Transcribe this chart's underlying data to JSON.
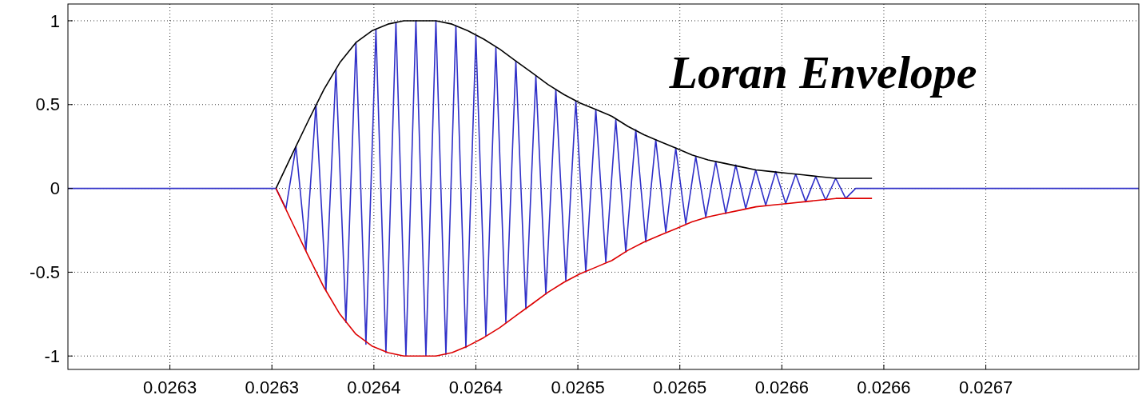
{
  "chart_data": {
    "type": "line",
    "title": "Loran Envelope",
    "xlim": [
      0.02625,
      0.026775
    ],
    "ylim": [
      -1.08,
      1.1
    ],
    "xticks": [
      {
        "value": 0.0263,
        "label": "0.0263"
      },
      {
        "value": 0.02635,
        "label": "0.0263"
      },
      {
        "value": 0.0264,
        "label": "0.0264"
      },
      {
        "value": 0.02645,
        "label": "0.0264"
      },
      {
        "value": 0.0265,
        "label": "0.0265"
      },
      {
        "value": 0.02655,
        "label": "0.0265"
      },
      {
        "value": 0.0266,
        "label": "0.0266"
      },
      {
        "value": 0.02665,
        "label": "0.0266"
      },
      {
        "value": 0.0267,
        "label": "0.0267"
      }
    ],
    "yticks": [
      -1,
      -0.5,
      0,
      0.5,
      1
    ],
    "grid": true,
    "marker": "none",
    "line_style": "solid",
    "series": [
      {
        "color": "#3030c8",
        "x": [
          0.02625,
          0.026352,
          0.0263569,
          0.0263618,
          0.0263667,
          0.0263716,
          0.0263765,
          0.0263814,
          0.0263863,
          0.0263912,
          0.0263961,
          0.026401,
          0.0264059,
          0.0264108,
          0.0264157,
          0.0264206,
          0.0264255,
          0.0264304,
          0.0264353,
          0.0264402,
          0.0264451,
          0.02645,
          0.0264549,
          0.0264598,
          0.0264647,
          0.0264696,
          0.0264745,
          0.0264794,
          0.0264843,
          0.0264892,
          0.0264941,
          0.026499,
          0.0265039,
          0.0265088,
          0.0265137,
          0.0265186,
          0.0265235,
          0.0265284,
          0.0265333,
          0.0265382,
          0.0265431,
          0.026548,
          0.0265529,
          0.0265578,
          0.0265627,
          0.0265676,
          0.0265725,
          0.0265774,
          0.0265823,
          0.0265872,
          0.0265921,
          0.026597,
          0.0266019,
          0.0266068,
          0.0266117,
          0.0266166,
          0.0266215,
          0.0266264,
          0.0266313,
          0.0266362,
          0.026775
        ],
        "values": [
          0,
          0,
          -0.12,
          0.25,
          -0.37,
          0.5,
          -0.61,
          0.71,
          -0.8,
          0.87,
          -0.93,
          0.95,
          -0.98,
          0.99,
          -1.0,
          1.0,
          -1.0,
          1.0,
          -0.99,
          0.97,
          -0.95,
          0.91,
          -0.88,
          0.84,
          -0.8,
          0.76,
          -0.72,
          0.67,
          -0.63,
          0.59,
          -0.55,
          0.52,
          -0.5,
          0.47,
          -0.44,
          0.41,
          -0.38,
          0.35,
          -0.32,
          0.29,
          -0.26,
          0.24,
          -0.21,
          0.19,
          -0.17,
          0.16,
          -0.15,
          0.14,
          -0.12,
          0.11,
          -0.1,
          0.1,
          -0.09,
          0.085,
          -0.08,
          0.07,
          -0.07,
          0.06,
          -0.06,
          0,
          0
        ]
      },
      {
        "color": "#000000",
        "x": [
          0.026352,
          0.0263598,
          0.0263677,
          0.0263755,
          0.0263833,
          0.0263912,
          0.026399,
          0.0264069,
          0.0264147,
          0.0264226,
          0.0264304,
          0.0264383,
          0.0264461,
          0.0264539,
          0.0264618,
          0.0264696,
          0.0264775,
          0.0264853,
          0.0264932,
          0.026501,
          0.0265089,
          0.0265167,
          0.0265245,
          0.0265324,
          0.0265402,
          0.0265481,
          0.0265559,
          0.0265638,
          0.0265716,
          0.0265795,
          0.0265873,
          0.0265951,
          0.026603,
          0.0266108,
          0.0266187,
          0.0266265,
          0.0266344,
          0.0266442
        ],
        "values": [
          0,
          0.2,
          0.4,
          0.59,
          0.75,
          0.87,
          0.94,
          0.98,
          1.0,
          1.0,
          1.0,
          0.98,
          0.94,
          0.89,
          0.83,
          0.76,
          0.69,
          0.62,
          0.56,
          0.51,
          0.47,
          0.43,
          0.37,
          0.32,
          0.28,
          0.24,
          0.2,
          0.17,
          0.15,
          0.13,
          0.11,
          0.1,
          0.09,
          0.08,
          0.07,
          0.06,
          0.06,
          0.06
        ]
      },
      {
        "color": "#dd0000",
        "x": [
          0.026352,
          0.0263598,
          0.0263677,
          0.0263755,
          0.0263833,
          0.0263912,
          0.026399,
          0.0264069,
          0.0264147,
          0.0264226,
          0.0264304,
          0.0264383,
          0.0264461,
          0.0264539,
          0.0264618,
          0.0264696,
          0.0264775,
          0.0264853,
          0.0264932,
          0.026501,
          0.0265089,
          0.0265167,
          0.0265245,
          0.0265324,
          0.0265402,
          0.0265481,
          0.0265559,
          0.0265638,
          0.0265716,
          0.0265795,
          0.0265873,
          0.0265951,
          0.026603,
          0.0266108,
          0.0266187,
          0.0266265,
          0.0266344,
          0.0266442
        ],
        "values": [
          0,
          -0.2,
          -0.4,
          -0.59,
          -0.75,
          -0.87,
          -0.94,
          -0.98,
          -1.0,
          -1.0,
          -1.0,
          -0.98,
          -0.94,
          -0.89,
          -0.83,
          -0.76,
          -0.69,
          -0.62,
          -0.56,
          -0.51,
          -0.47,
          -0.43,
          -0.37,
          -0.32,
          -0.28,
          -0.24,
          -0.2,
          -0.17,
          -0.15,
          -0.13,
          -0.11,
          -0.1,
          -0.09,
          -0.08,
          -0.07,
          -0.06,
          -0.06,
          -0.06
        ]
      }
    ]
  }
}
